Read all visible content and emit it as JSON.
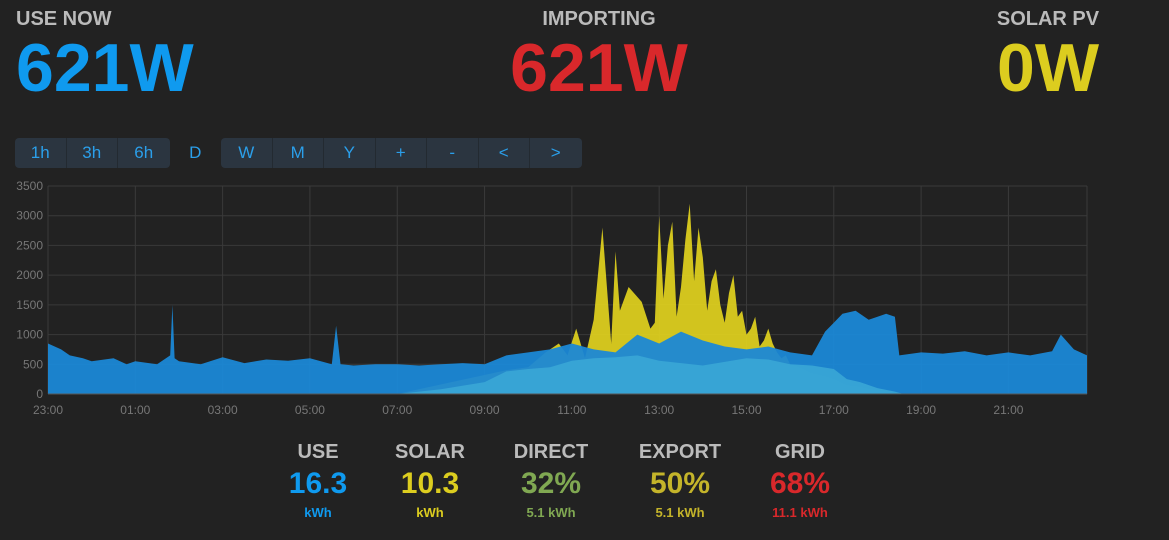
{
  "header": {
    "use_now": {
      "label": "USE NOW",
      "value": "621W",
      "color": "#0f9aef"
    },
    "importing": {
      "label": "IMPORTING",
      "value": "621W",
      "color": "#d9282b"
    },
    "solar_pv": {
      "label": "SOLAR PV",
      "value": "0W",
      "color": "#dccd1f"
    }
  },
  "toolbar": {
    "buttons": [
      "1h",
      "3h",
      "6h",
      "D",
      "W",
      "M",
      "Y",
      "+",
      "-",
      "<",
      ">"
    ],
    "active": "D"
  },
  "colors": {
    "use": "#0f9aef",
    "solar": "#dccd1f",
    "direct": "#80a852",
    "export": "#c4b42a",
    "grid": "#d9282b",
    "use_area": "#1b88d6",
    "direct_area": "#3aa6d6",
    "background": "#222222"
  },
  "chart_data": {
    "type": "area",
    "ylim": [
      0,
      3500
    ],
    "yticks": [
      0,
      500,
      1000,
      1500,
      2000,
      2500,
      3000,
      3500
    ],
    "xlim": [
      23,
      46.8
    ],
    "xticks": [
      {
        "label": "23:00",
        "x": 23
      },
      {
        "label": "01:00",
        "x": 25
      },
      {
        "label": "03:00",
        "x": 27
      },
      {
        "label": "05:00",
        "x": 29
      },
      {
        "label": "07:00",
        "x": 31
      },
      {
        "label": "09:00",
        "x": 33
      },
      {
        "label": "11:00",
        "x": 35
      },
      {
        "label": "13:00",
        "x": 37
      },
      {
        "label": "15:00",
        "x": 39
      },
      {
        "label": "17:00",
        "x": 41
      },
      {
        "label": "19:00",
        "x": 43
      },
      {
        "label": "21:00",
        "x": 45
      }
    ],
    "series": [
      {
        "name": "Solar",
        "x": [
          31.0,
          33.5,
          34.0,
          34.4,
          34.7,
          34.9,
          35.1,
          35.3,
          35.5,
          35.7,
          35.9,
          36.0,
          36.1,
          36.3,
          36.6,
          36.8,
          36.9,
          37.0,
          37.1,
          37.2,
          37.3,
          37.4,
          37.5,
          37.6,
          37.7,
          37.8,
          37.9,
          38.0,
          38.1,
          38.2,
          38.3,
          38.4,
          38.5,
          38.6,
          38.7,
          38.8,
          38.9,
          39.0,
          39.1,
          39.2,
          39.3,
          39.4,
          39.5,
          39.6,
          39.7,
          39.8,
          39.9,
          40.0,
          40.2,
          40.5,
          40.8,
          41.0,
          41.3,
          41.6,
          41.8,
          42.0,
          42.2,
          42.4,
          42.6
        ],
        "values": [
          0,
          400,
          450,
          700,
          850,
          650,
          1100,
          600,
          1250,
          2800,
          850,
          2400,
          1400,
          1800,
          1550,
          1100,
          1200,
          3000,
          1600,
          2500,
          2900,
          1300,
          1800,
          2600,
          3200,
          1900,
          2800,
          2300,
          1400,
          1900,
          2100,
          1500,
          1200,
          1700,
          2000,
          1300,
          1400,
          1000,
          1100,
          1300,
          800,
          900,
          1100,
          850,
          700,
          600,
          650,
          500,
          450,
          350,
          300,
          250,
          150,
          120,
          90,
          60,
          40,
          20,
          0
        ]
      },
      {
        "name": "Direct",
        "x": [
          31.0,
          32.0,
          33.0,
          33.5,
          34.0,
          34.5,
          35.0,
          35.5,
          36.0,
          36.5,
          37.0,
          37.5,
          38.0,
          38.5,
          39.0,
          39.5,
          40.0,
          40.5,
          41.0,
          41.3,
          41.6,
          42.0,
          42.4,
          42.6
        ],
        "values": [
          0,
          80,
          200,
          380,
          420,
          450,
          560,
          600,
          620,
          650,
          560,
          520,
          480,
          540,
          600,
          580,
          500,
          480,
          420,
          250,
          200,
          100,
          40,
          0
        ]
      },
      {
        "name": "Use",
        "x": [
          23.0,
          23.3,
          23.5,
          23.8,
          24.0,
          24.5,
          24.8,
          25.0,
          25.5,
          25.8,
          25.85,
          25.9,
          26.0,
          26.5,
          27.0,
          27.5,
          28.0,
          28.5,
          29.0,
          29.5,
          29.6,
          29.7,
          30.0,
          30.5,
          31.0,
          31.5,
          32.0,
          32.5,
          33.0,
          33.5,
          34.0,
          34.5,
          35.0,
          35.5,
          36.0,
          36.5,
          37.0,
          37.5,
          38.0,
          38.5,
          39.0,
          39.5,
          40.0,
          40.5,
          40.8,
          41.0,
          41.2,
          41.5,
          41.8,
          42.0,
          42.2,
          42.4,
          42.5,
          43.0,
          43.5,
          44.0,
          44.5,
          45.0,
          45.5,
          46.0,
          46.2,
          46.5,
          46.8
        ],
        "values": [
          850,
          750,
          650,
          600,
          550,
          600,
          500,
          550,
          500,
          650,
          1500,
          600,
          550,
          500,
          620,
          520,
          580,
          560,
          600,
          500,
          1150,
          500,
          480,
          500,
          500,
          480,
          500,
          520,
          500,
          650,
          700,
          750,
          850,
          750,
          700,
          1000,
          850,
          1050,
          900,
          800,
          750,
          800,
          700,
          650,
          1050,
          1200,
          1350,
          1400,
          1250,
          1300,
          1350,
          1300,
          650,
          700,
          680,
          720,
          650,
          700,
          650,
          720,
          1000,
          750,
          650
        ]
      }
    ]
  },
  "summary": [
    {
      "key": "use",
      "label": "USE",
      "value": "16.3",
      "sub": "kWh",
      "color": "#0f9aef"
    },
    {
      "key": "solar",
      "label": "SOLAR",
      "value": "10.3",
      "sub": "kWh",
      "color": "#dccd1f"
    },
    {
      "key": "direct",
      "label": "DIRECT",
      "value": "32%",
      "sub": "5.1 kWh",
      "color": "#80a852"
    },
    {
      "key": "export",
      "label": "EXPORT",
      "value": "50%",
      "sub": "5.1 kWh",
      "color": "#c4b42a"
    },
    {
      "key": "grid",
      "label": "GRID",
      "value": "68%",
      "sub": "11.1 kWh",
      "color": "#d9282b"
    }
  ]
}
